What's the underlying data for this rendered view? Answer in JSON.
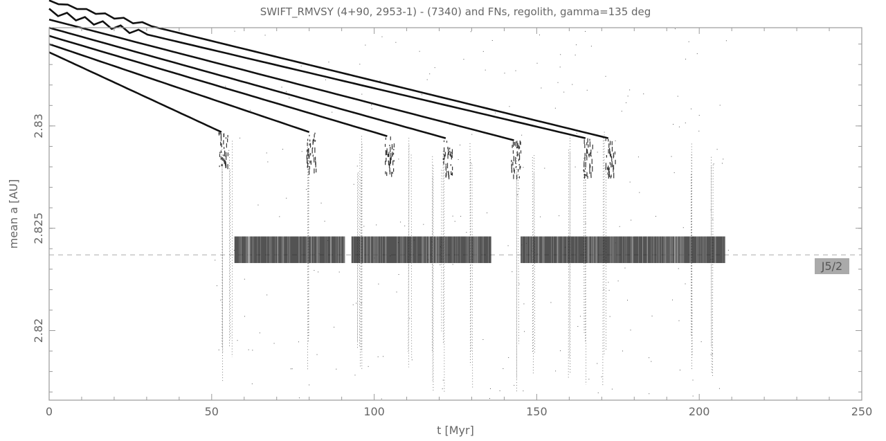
{
  "chart_data": {
    "type": "scatter",
    "title": "SWIFT_RMVSY (4+90, 2953-1) - (7340) and FNs, regolith, gamma=135 deg",
    "xlabel": "t [Myr]",
    "ylabel": "mean a [AU]",
    "xlim": [
      0,
      250
    ],
    "ylim": [
      2.8166,
      2.8348
    ],
    "xticks": [
      0,
      50,
      100,
      150,
      200,
      250
    ],
    "xtick_labels": [
      "0",
      "50",
      "100",
      "150",
      "200",
      "250"
    ],
    "yticks": [
      2.82,
      2.825,
      2.83
    ],
    "ytick_labels": [
      "2.82",
      "2.825",
      "2.83"
    ],
    "grid": false,
    "resonance": {
      "label": "J5/2",
      "a": 2.8237
    },
    "drift_tracks": [
      {
        "start": [
          0,
          2.8336
        ],
        "end": [
          53,
          2.8297
        ]
      },
      {
        "start": [
          0,
          2.834
        ],
        "end": [
          80,
          2.8297
        ]
      },
      {
        "start": [
          0,
          2.8344
        ],
        "end": [
          104,
          2.8295
        ]
      },
      {
        "start": [
          0,
          2.8348
        ],
        "end": [
          122,
          2.8294
        ]
      },
      {
        "start": [
          0,
          2.8352
        ],
        "end": [
          143,
          2.8293
        ]
      },
      {
        "start": [
          0,
          2.8356
        ],
        "end": [
          165,
          2.8294
        ]
      },
      {
        "start": [
          0,
          2.8361
        ],
        "end": [
          172,
          2.8294
        ]
      }
    ],
    "resonance_band": {
      "a_min": 2.8233,
      "a_max": 2.8246,
      "t_ranges": [
        [
          57,
          91
        ],
        [
          93,
          97
        ],
        [
          97,
          136
        ],
        [
          145,
          208
        ]
      ]
    },
    "excursions_t": [
      53,
      56,
      80,
      95,
      96,
      111,
      118,
      121,
      130,
      144,
      149,
      160,
      165,
      171,
      198,
      204
    ]
  }
}
